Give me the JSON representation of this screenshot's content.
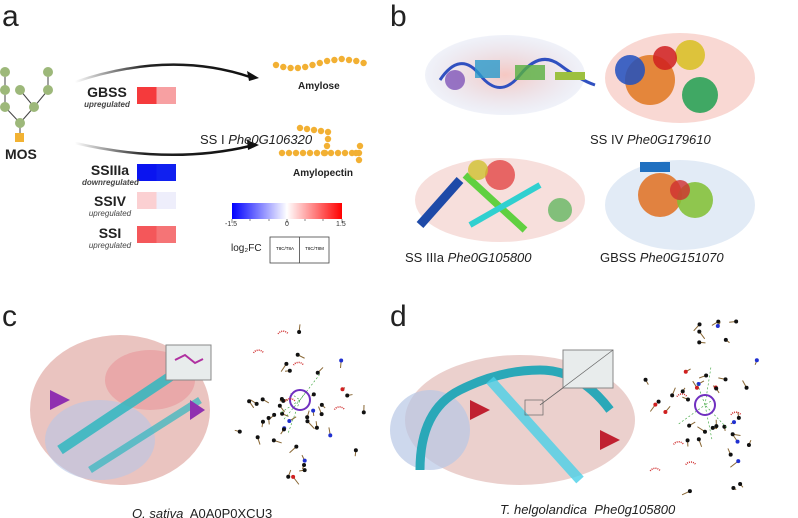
{
  "panels": {
    "a": {
      "label": "a",
      "substrate": "MOS",
      "products": [
        "Amylose",
        "Amylopectin"
      ],
      "genes": [
        {
          "name": "GBSS",
          "regulation": "upregulated",
          "colors": [
            "#f53a3c",
            "#f7a0a2"
          ]
        },
        {
          "name": "SSIIIa",
          "regulation": "downregulated",
          "colors": [
            "#0a14f0",
            "#1020f0"
          ]
        },
        {
          "name": "SSIV",
          "regulation": "upregulated",
          "colors": [
            "#fbd0d2",
            "#eeeefb"
          ]
        },
        {
          "name": "SSI",
          "regulation": "upregulated",
          "colors": [
            "#f4575a",
            "#f57476"
          ]
        }
      ],
      "colorbar": {
        "min": "-1.5",
        "mid": "0",
        "max": "1.5",
        "low_color": "#0000ff",
        "high_color": "#ff0000"
      },
      "legend": {
        "label": "log₂FC",
        "columns": [
          "T8C/T8A",
          "T8C/T8M"
        ]
      }
    },
    "b": {
      "label": "b",
      "structures": [
        {
          "protein": "SS I",
          "gene": "Phe0G106320"
        },
        {
          "protein": "SS IV",
          "gene": "Phe0G179610"
        },
        {
          "protein": "SS IIIa",
          "gene": "Phe0G105800"
        },
        {
          "protein": "GBSS",
          "gene": "Phe0G151070"
        }
      ]
    },
    "c": {
      "label": "c",
      "species": "O. sativa",
      "id": "A0A0P0XCU3"
    },
    "d": {
      "label": "d",
      "species": "T. helgolandica",
      "id": "Phe0g105800"
    }
  }
}
